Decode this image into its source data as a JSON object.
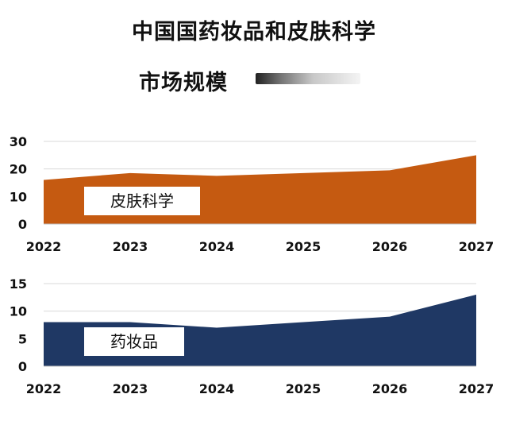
{
  "header": {
    "title_line_1": "中国国药妆品和皮肤科学",
    "title_line_2": "市场规模"
  },
  "chart_data": [
    {
      "type": "area",
      "categories": [
        "2022",
        "2023",
        "2024",
        "2025",
        "2026",
        "2027"
      ],
      "series": [
        {
          "name": "皮肤科学",
          "values": [
            16,
            18.5,
            17.5,
            18.5,
            19.5,
            25
          ],
          "color": "#c55a11"
        }
      ],
      "ylim": [
        0,
        30
      ],
      "yticks": [
        0,
        10,
        20,
        30
      ],
      "grid": true,
      "label_box_text": "皮肤科学"
    },
    {
      "type": "area",
      "categories": [
        "2022",
        "2023",
        "2024",
        "2025",
        "2026",
        "2027"
      ],
      "series": [
        {
          "name": "药妆品",
          "values": [
            8,
            8,
            7,
            8,
            9,
            13
          ],
          "color": "#1f3864"
        }
      ],
      "ylim": [
        0,
        15
      ],
      "yticks": [
        0,
        5,
        10,
        15
      ],
      "grid": true,
      "label_box_text": "药妆品"
    }
  ]
}
